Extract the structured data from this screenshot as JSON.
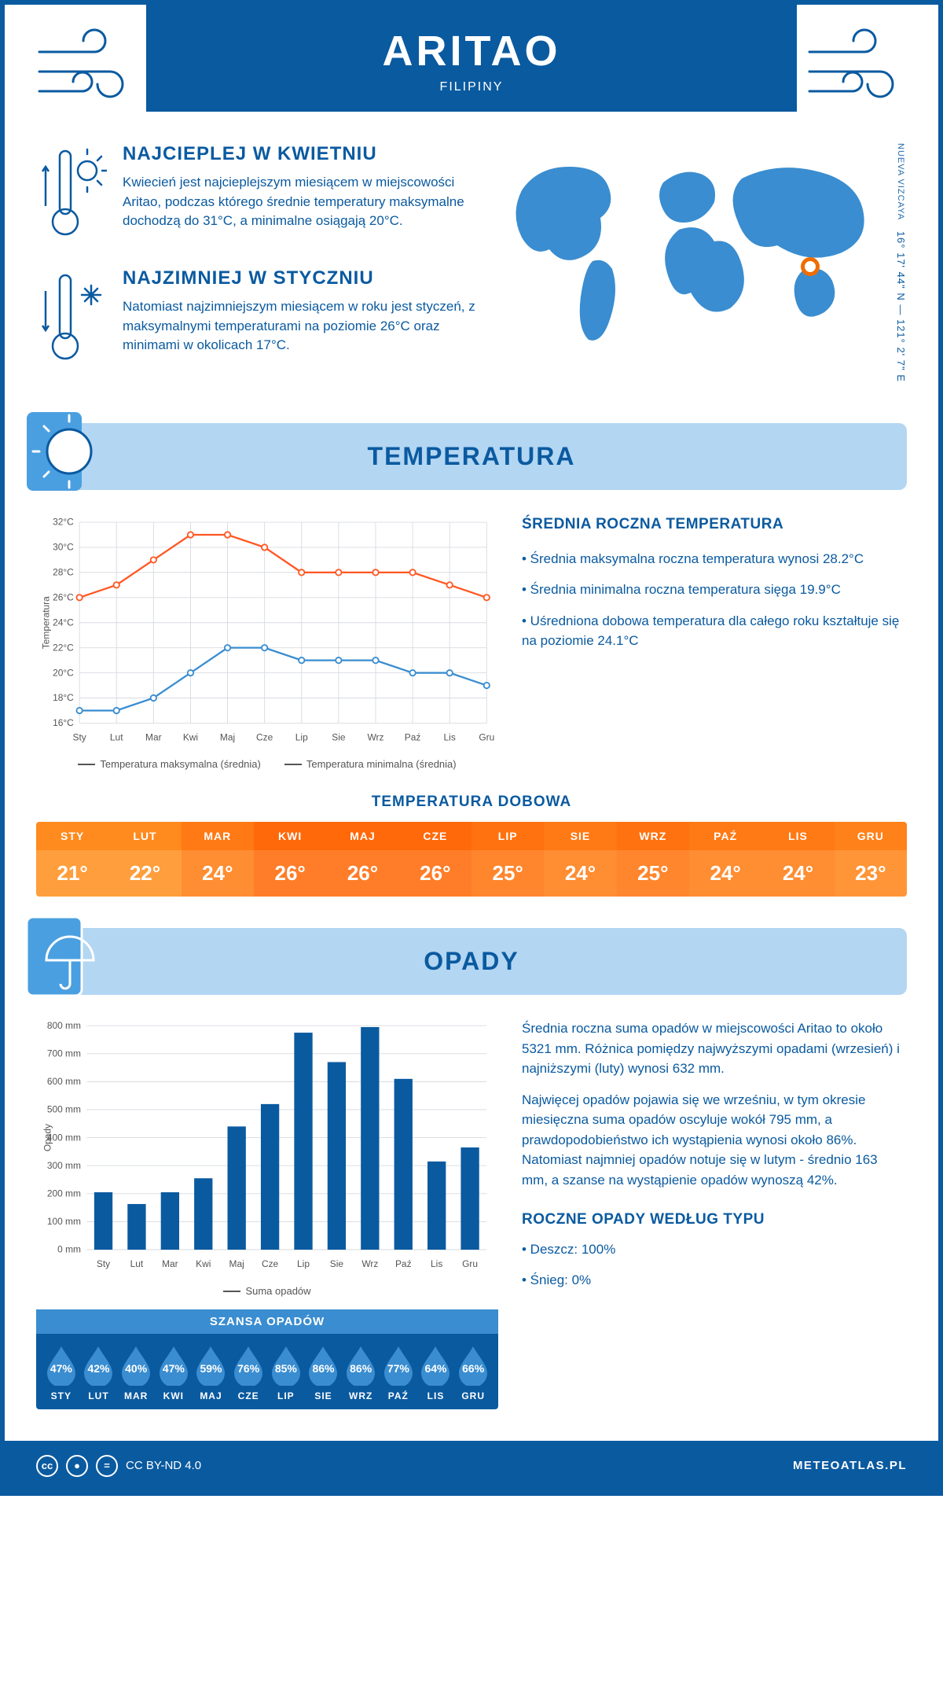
{
  "header": {
    "city": "ARITAO",
    "country": "FILIPINY"
  },
  "coords": {
    "region": "NUEVA VIZCAYA",
    "lat": "16° 17' 44\" N",
    "lon": "121° 2' 7\" E"
  },
  "map_marker": {
    "left_pct": 74,
    "top_pct": 46
  },
  "colors": {
    "primary": "#0a5aa0",
    "light_blue": "#b3d6f2",
    "mid_blue": "#3a8dd0",
    "line_max": "#ff5722",
    "line_min": "#3a8dd0",
    "grid": "#d7dbe0",
    "bar": "#0a5aa0",
    "bg": "#ffffff",
    "marker": "#ef6c00"
  },
  "months_short": [
    "Sty",
    "Lut",
    "Mar",
    "Kwi",
    "Maj",
    "Cze",
    "Lip",
    "Sie",
    "Wrz",
    "Paź",
    "Lis",
    "Gru"
  ],
  "months_upper": [
    "STY",
    "LUT",
    "MAR",
    "KWI",
    "MAJ",
    "CZE",
    "LIP",
    "SIE",
    "WRZ",
    "PAŹ",
    "LIS",
    "GRU"
  ],
  "warm": {
    "title": "NAJCIEPLEJ W KWIETNIU",
    "text": "Kwiecień jest najcieplejszym miesiącem w miejscowości Aritao, podczas którego średnie temperatury maksymalne dochodzą do 31°C, a minimalne osiągają 20°C."
  },
  "cold": {
    "title": "NAJZIMNIEJ W STYCZNIU",
    "text": "Natomiast najzimniejszym miesiącem w roku jest styczeń, z maksymalnymi temperaturami na poziomie 26°C oraz minimami w okolicach 17°C."
  },
  "temp_section": {
    "title": "TEMPERATURA",
    "ylabel": "Temperatura",
    "ylim": [
      16,
      32
    ],
    "ytick_step": 2,
    "y_unit": "°C",
    "max_series": [
      26,
      27,
      29,
      31,
      31,
      30,
      28,
      28,
      28,
      28,
      27,
      26
    ],
    "min_series": [
      17,
      17,
      18,
      20,
      22,
      22,
      21,
      21,
      21,
      20,
      20,
      19
    ],
    "legend_max": "Temperatura maksymalna (średnia)",
    "legend_min": "Temperatura minimalna (średnia)",
    "side_title": "ŚREDNIA ROCZNA TEMPERATURA",
    "side_items": [
      "• Średnia maksymalna roczna temperatura wynosi 28.2°C",
      "• Średnia minimalna roczna temperatura sięga 19.9°C",
      "• Uśredniona dobowa temperatura dla całego roku kształtuje się na poziomie 24.1°C"
    ]
  },
  "daily_temp": {
    "title": "TEMPERATURA DOBOWA",
    "values": [
      "21°",
      "22°",
      "24°",
      "26°",
      "26°",
      "26°",
      "25°",
      "24°",
      "25°",
      "24°",
      "24°",
      "23°"
    ],
    "header_colors": [
      "#ff8a1e",
      "#ff8a1e",
      "#ff7914",
      "#ff690a",
      "#ff690a",
      "#ff690a",
      "#ff720f",
      "#ff7914",
      "#ff720f",
      "#ff7914",
      "#ff7914",
      "#ff8119"
    ],
    "value_colors": [
      "#ff9e3c",
      "#ff9e3c",
      "#ff8d32",
      "#ff7d28",
      "#ff7d28",
      "#ff7d28",
      "#ff862d",
      "#ff8d32",
      "#ff862d",
      "#ff8d32",
      "#ff8d32",
      "#ff9537"
    ]
  },
  "precip": {
    "title": "OPADY",
    "ylabel": "Opady",
    "ylim": [
      0,
      800
    ],
    "ytick_step": 100,
    "y_unit": " mm",
    "values": [
      205,
      163,
      205,
      255,
      440,
      520,
      775,
      670,
      795,
      610,
      315,
      365
    ],
    "legend": "Suma opadów",
    "bar_width": 0.55,
    "para1": "Średnia roczna suma opadów w miejscowości Aritao to około 5321 mm. Różnica pomiędzy najwyższymi opadami (wrzesień) i najniższymi (luty) wynosi 632 mm.",
    "para2": "Najwięcej opadów pojawia się we wrześniu, w tym okresie miesięczna suma opadów oscyluje wokół 795 mm, a prawdopodobieństwo ich wystąpienia wynosi około 86%. Natomiast najmniej opadów notuje się w lutym - średnio 163 mm, a szanse na wystąpienie opadów wynoszą 42%.",
    "chance_title": "SZANSA OPADÓW",
    "chances": [
      "47%",
      "42%",
      "40%",
      "47%",
      "59%",
      "76%",
      "85%",
      "86%",
      "86%",
      "77%",
      "64%",
      "66%"
    ],
    "type_title": "ROCZNE OPADY WEDŁUG TYPU",
    "type_items": [
      "• Deszcz: 100%",
      "• Śnieg: 0%"
    ]
  },
  "footer": {
    "license": "CC BY-ND 4.0",
    "site": "METEOATLAS.PL"
  }
}
